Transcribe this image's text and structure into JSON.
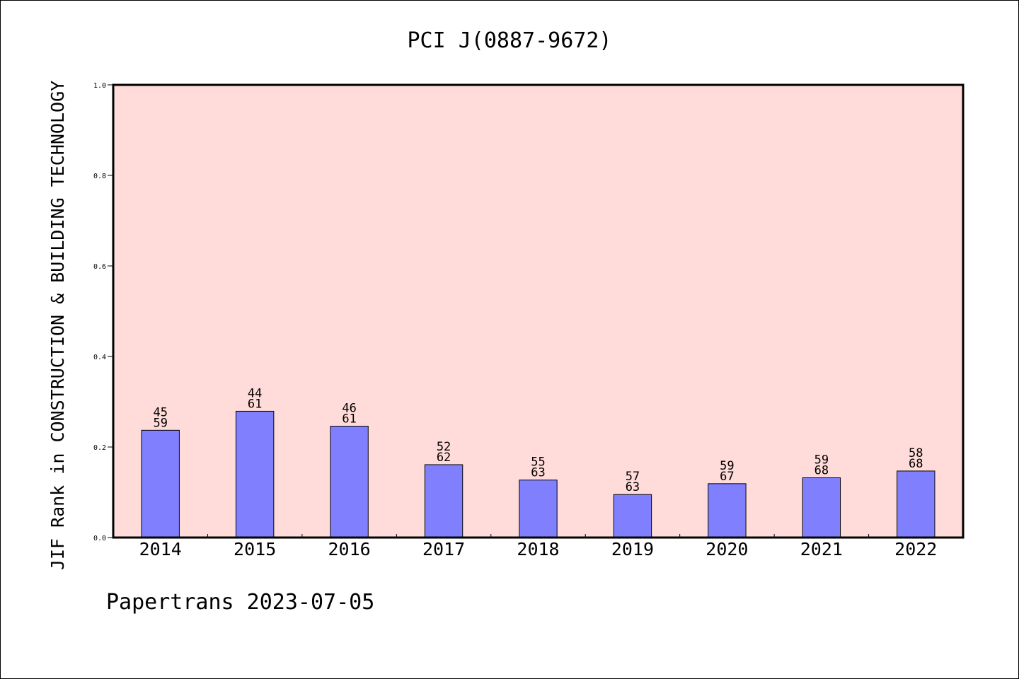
{
  "chart_data": {
    "type": "bar",
    "title": "PCI J(0887-9672)",
    "ylabel": "JIF Rank in CONSTRUCTION & BUILDING TECHNOLOGY",
    "xlabel": "",
    "categories": [
      "2014",
      "2015",
      "2016",
      "2017",
      "2018",
      "2019",
      "2020",
      "2021",
      "2022"
    ],
    "values": [
      0.237,
      0.279,
      0.246,
      0.161,
      0.127,
      0.095,
      0.119,
      0.132,
      0.147
    ],
    "rank": [
      "45",
      "44",
      "46",
      "52",
      "55",
      "57",
      "59",
      "59",
      "58"
    ],
    "total": [
      "59",
      "61",
      "61",
      "62",
      "63",
      "63",
      "67",
      "68",
      "68"
    ],
    "ylim": [
      0,
      1.0
    ],
    "yticks": [
      "0.0",
      "0.2",
      "0.4",
      "0.6",
      "0.8",
      "1.0"
    ],
    "grid": false,
    "legend": "none",
    "colors": {
      "plot_background": "#ffdcd9",
      "bar_fill": "#8080ff",
      "bar_stroke": "#000000",
      "axis": "#000000"
    }
  },
  "footer": {
    "text": "Papertrans 2023-07-05"
  }
}
